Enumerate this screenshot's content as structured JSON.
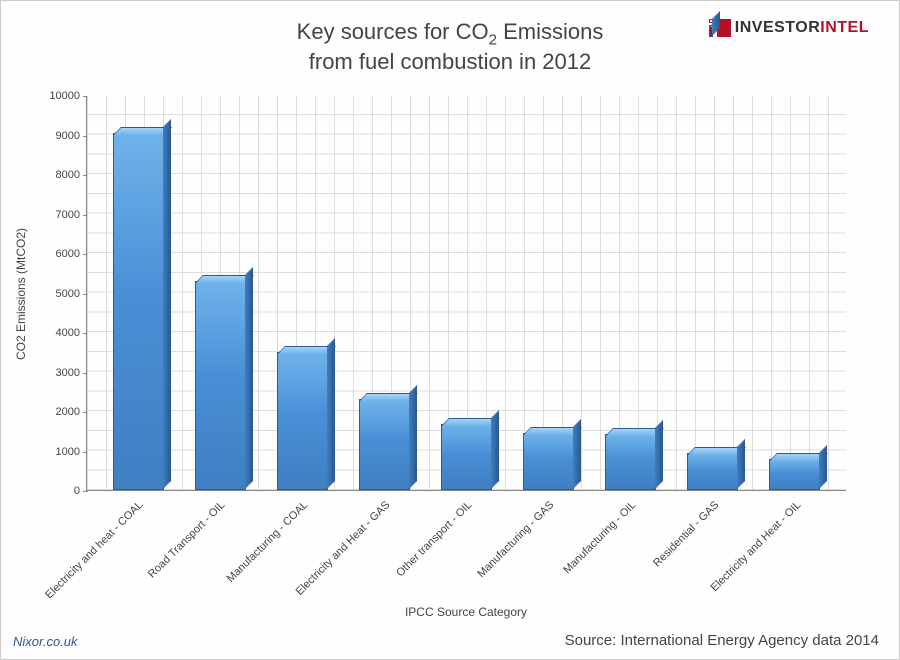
{
  "title_line1": "Key sources for CO",
  "title_sub": "2",
  "title_line1b": " Emissions",
  "title_line2": "from fuel combustion in 2012",
  "logo": {
    "text_black": "INVESTOR",
    "text_red": "INTEL"
  },
  "chart": {
    "type": "bar",
    "ylabel": "CO2 Emissions (MtCO2)",
    "xlabel": "IPCC Source Category",
    "ylim": [
      0,
      10000
    ],
    "ytick_step": 1000,
    "yticks": [
      0,
      1000,
      2000,
      3000,
      4000,
      5000,
      6000,
      7000,
      8000,
      9000,
      10000
    ],
    "bar_color_top": "#6fb3ea",
    "bar_color_bottom": "#3f7fc2",
    "bar_border": "#2c5a91",
    "grid_color": "#d8d8d8",
    "background_color": "#fefefe",
    "categories": [
      "Electricity and heat - COAL",
      "Road Transport - OIL",
      "Manufacturing - COAL",
      "Electricity and Heat - GAS",
      "Other transport - OIL",
      "Manufacturing - GAS",
      "Manufacturing - OIL",
      "Residential - GAS",
      "Electricity and Heat - OIL"
    ],
    "values": [
      9050,
      5300,
      3500,
      2300,
      1680,
      1450,
      1420,
      950,
      790
    ]
  },
  "footer_left": "Nixor.co.uk",
  "footer_right": "Source: International Energy Agency data 2014"
}
